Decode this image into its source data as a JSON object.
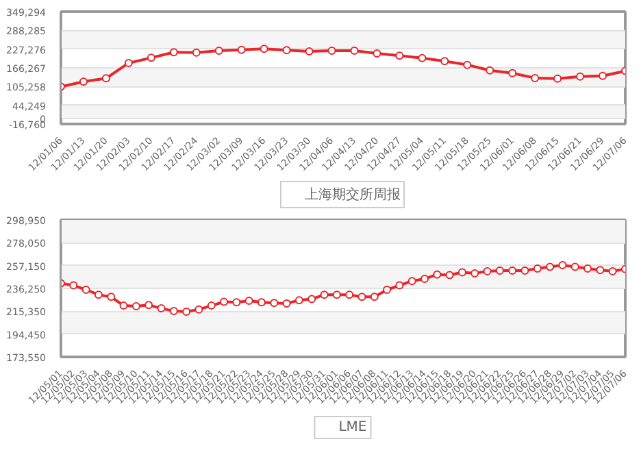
{
  "chart_data": [
    {
      "type": "line",
      "categories": [
        "12/01/06",
        "12/01/13",
        "12/01/20",
        "12/02/03",
        "12/02/10",
        "12/02/17",
        "12/02/24",
        "12/03/02",
        "12/03/09",
        "12/03/16",
        "12/03/23",
        "12/03/30",
        "12/04/06",
        "12/04/13",
        "12/04/20",
        "12/04/27",
        "12/05/04",
        "12/05/11",
        "12/05/18",
        "12/05/25",
        "12/06/01",
        "12/06/08",
        "12/06/15",
        "12/06/21",
        "12/06/29",
        "12/07/06"
      ],
      "series": [
        {
          "name": "上海期交所周报",
          "color": "#e8262b",
          "values": [
            105000,
            121000,
            132000,
            182000,
            199000,
            217000,
            216000,
            222000,
            225000,
            228000,
            224000,
            220000,
            222000,
            222000,
            213000,
            206000,
            198000,
            188000,
            176000,
            158000,
            149000,
            133000,
            131000,
            138000,
            140000,
            156000
          ]
        }
      ],
      "ylim": [
        -16760,
        349294
      ],
      "yticks": [
        {
          "value": -16760,
          "label": "-16,760"
        },
        {
          "value": 0,
          "label": "0"
        },
        {
          "value": 44249,
          "label": "44,249"
        },
        {
          "value": 105258,
          "label": "105,258"
        },
        {
          "value": 166267,
          "label": "166,267"
        },
        {
          "value": 227276,
          "label": "227,276"
        },
        {
          "value": 288285,
          "label": "288,285"
        },
        {
          "value": 349294,
          "label": "349,294"
        }
      ],
      "grid": "y",
      "legend": "bottom",
      "marker": "circle",
      "line_style": "solid"
    },
    {
      "type": "line",
      "categories": [
        "12/05/01",
        "12/05/02",
        "12/05/03",
        "12/05/04",
        "12/05/08",
        "12/05/09",
        "12/05/10",
        "12/05/11",
        "12/05/14",
        "12/05/15",
        "12/05/16",
        "12/05/17",
        "12/05/18",
        "12/05/21",
        "12/05/22",
        "12/05/23",
        "12/05/24",
        "12/05/25",
        "12/05/28",
        "12/05/29",
        "12/05/30",
        "12/05/31",
        "12/06/01",
        "12/06/06",
        "12/06/07",
        "12/06/08",
        "12/06/11",
        "12/06/12",
        "12/06/13",
        "12/06/14",
        "12/06/15",
        "12/06/18",
        "12/06/19",
        "12/06/20",
        "12/06/21",
        "12/06/22",
        "12/06/25",
        "12/06/26",
        "12/06/27",
        "12/06/28",
        "12/06/29",
        "12/07/02",
        "12/07/03",
        "12/07/04",
        "12/07/05",
        "12/07/06"
      ],
      "series": [
        {
          "name": "LME",
          "color": "#e8262b",
          "values": [
            241000,
            239000,
            235000,
            230500,
            228500,
            220500,
            220000,
            221000,
            218000,
            215500,
            215000,
            217000,
            220500,
            224000,
            223500,
            225000,
            223500,
            223000,
            222500,
            225500,
            226500,
            230500,
            230500,
            230500,
            228500,
            228500,
            235000,
            239000,
            243000,
            245000,
            249000,
            248500,
            251000,
            250000,
            252000,
            252500,
            252500,
            252500,
            254500,
            256000,
            257500,
            256000,
            254500,
            253000,
            252000,
            254000
          ]
        }
      ],
      "ylim": [
        173550,
        298950
      ],
      "yticks": [
        {
          "value": 173550,
          "label": "173,550"
        },
        {
          "value": 194450,
          "label": "194,450"
        },
        {
          "value": 215350,
          "label": "215,350"
        },
        {
          "value": 236250,
          "label": "236,250"
        },
        {
          "value": 257150,
          "label": "257,150"
        },
        {
          "value": 278050,
          "label": "278,050"
        },
        {
          "value": 298950,
          "label": "298,950"
        }
      ],
      "grid": "y",
      "legend": "bottom",
      "marker": "circle",
      "line_style": "solid"
    }
  ]
}
